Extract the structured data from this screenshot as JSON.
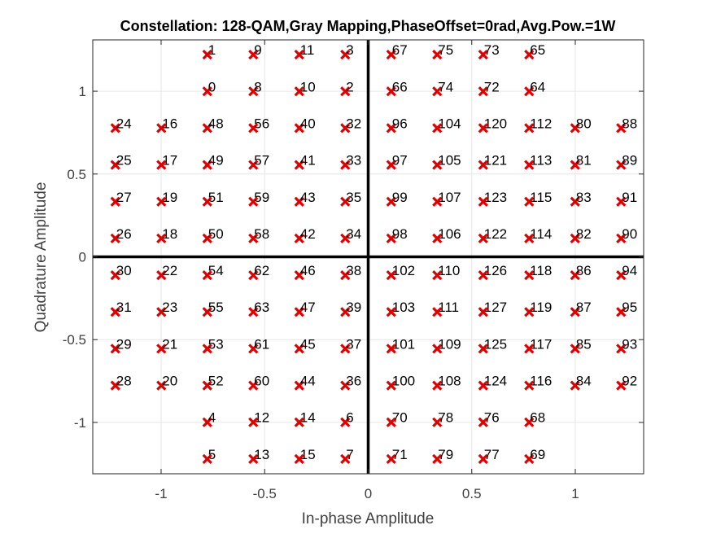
{
  "chart_data": {
    "type": "scatter",
    "title": "Constellation: 128-QAM,Gray Mapping,PhaseOffset=0rad,Avg.Pow.=1W",
    "xlabel": "In-phase Amplitude",
    "ylabel": "Quadrature Amplitude",
    "xlim": [
      -1.33,
      1.33
    ],
    "ylim": [
      -1.31,
      1.31
    ],
    "xticks": [
      {
        "value": -1,
        "label": "-1"
      },
      {
        "value": -0.5,
        "label": "-0.5"
      },
      {
        "value": 0,
        "label": "0"
      },
      {
        "value": 0.5,
        "label": "0.5"
      },
      {
        "value": 1,
        "label": "1"
      }
    ],
    "yticks": [
      {
        "value": -1,
        "label": "-1"
      },
      {
        "value": -0.5,
        "label": "-0.5"
      },
      {
        "value": 0,
        "label": "0"
      },
      {
        "value": 0.5,
        "label": "0.5"
      },
      {
        "value": 1,
        "label": "1"
      }
    ],
    "grid": true,
    "marker": "x",
    "marker_color": "#e00000",
    "i_levels": [
      -1.221,
      -0.999,
      -0.777,
      -0.555,
      -0.333,
      -0.111,
      0.111,
      0.333,
      0.555,
      0.777,
      0.999,
      1.221
    ],
    "q_levels": [
      1.221,
      0.999,
      0.777,
      0.555,
      0.333,
      0.111,
      -0.111,
      -0.333,
      -0.555,
      -0.777,
      -0.999,
      -1.221
    ],
    "symbol_rows": [
      [
        null,
        null,
        1,
        9,
        11,
        3,
        67,
        75,
        73,
        65,
        null,
        null
      ],
      [
        null,
        null,
        0,
        8,
        10,
        2,
        66,
        74,
        72,
        64,
        null,
        null
      ],
      [
        24,
        16,
        48,
        56,
        40,
        32,
        96,
        104,
        120,
        112,
        80,
        88
      ],
      [
        25,
        17,
        49,
        57,
        41,
        33,
        97,
        105,
        121,
        113,
        81,
        89
      ],
      [
        27,
        19,
        51,
        59,
        43,
        35,
        99,
        107,
        123,
        115,
        83,
        91
      ],
      [
        26,
        18,
        50,
        58,
        42,
        34,
        98,
        106,
        122,
        114,
        82,
        90
      ],
      [
        30,
        22,
        54,
        62,
        46,
        38,
        102,
        110,
        126,
        118,
        86,
        94
      ],
      [
        31,
        23,
        55,
        63,
        47,
        39,
        103,
        111,
        127,
        119,
        87,
        95
      ],
      [
        29,
        21,
        53,
        61,
        45,
        37,
        101,
        109,
        125,
        117,
        85,
        93
      ],
      [
        28,
        20,
        52,
        60,
        44,
        36,
        100,
        108,
        124,
        116,
        84,
        92
      ],
      [
        null,
        null,
        4,
        12,
        14,
        6,
        70,
        78,
        76,
        68,
        null,
        null
      ],
      [
        null,
        null,
        5,
        13,
        15,
        7,
        71,
        79,
        77,
        69,
        null,
        null
      ]
    ]
  }
}
